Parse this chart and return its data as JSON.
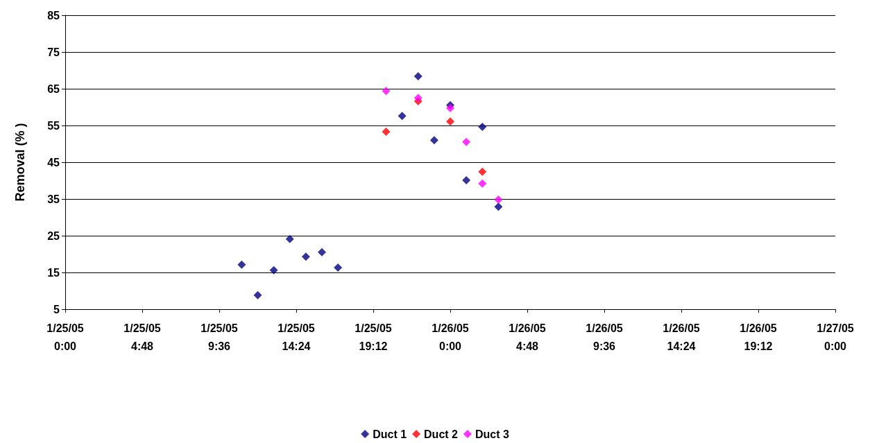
{
  "chart_data": {
    "type": "scatter",
    "ylabel": "Removal (% )",
    "marker": "diamond",
    "grid": "y",
    "legend": "bottom",
    "xlim": [
      "--01-25T00:00",
      "--01-27T00:00"
    ],
    "xticks": [
      {
        "value": "--01-25T00:00",
        "label": "1/25/05\n0:00"
      },
      {
        "value": "--01-25T04:48",
        "label": "1/25/05\n4:48"
      },
      {
        "value": "--01-25T09:36",
        "label": "1/25/05\n9:36"
      },
      {
        "value": "--01-25T14:24",
        "label": "1/25/05\n14:24"
      },
      {
        "value": "--01-25T19:12",
        "label": "1/25/05\n19:12"
      },
      {
        "value": "--01-26T00:00",
        "label": "1/26/05\n0:00"
      },
      {
        "value": "--01-26T04:48",
        "label": "1/26/05\n4:48"
      },
      {
        "value": "--01-26T09:36",
        "label": "1/26/05\n9:36"
      },
      {
        "value": "--01-26T14:24",
        "label": "1/26/05\n14:24"
      },
      {
        "value": "--01-26T19:12",
        "label": "1/26/05\n19:12"
      },
      {
        "value": "--01-27T00:00",
        "label": "1/27/05\n0:00"
      }
    ],
    "ylim": [
      5,
      85
    ],
    "yticks": [
      5,
      15,
      25,
      35,
      45,
      55,
      65,
      75,
      85
    ],
    "series": [
      {
        "name": "Duct 1",
        "color": "#000080",
        "x": [
          "--01-25T11:00",
          "--01-25T12:00",
          "--01-25T13:00",
          "--01-25T14:00",
          "--01-25T15:00",
          "--01-25T16:00",
          "--01-25T17:00",
          "--01-25T21:00",
          "--01-25T22:00",
          "--01-25T23:00",
          "--01-26T00:00",
          "--01-26T01:00",
          "--01-26T02:00",
          "--01-26T03:00"
        ],
        "values": [
          17.1,
          8.8,
          15.6,
          24.1,
          19.3,
          20.5,
          16.3,
          57.6,
          68.4,
          51.0,
          60.5,
          40.1,
          54.6,
          32.9
        ]
      },
      {
        "name": "Duct 2",
        "color": "#ff0000",
        "x": [
          "--01-25T20:00",
          "--01-25T22:00",
          "--01-26T00:00",
          "--01-26T02:00"
        ],
        "values": [
          53.3,
          61.6,
          56.1,
          42.4
        ]
      },
      {
        "name": "Duct 3",
        "color": "#ff00ff",
        "x": [
          "--01-25T20:00",
          "--01-25T22:00",
          "--01-26T00:00",
          "--01-26T01:00",
          "--01-26T02:00",
          "--01-26T03:00"
        ],
        "values": [
          64.4,
          62.5,
          59.7,
          50.5,
          39.2,
          34.8
        ]
      }
    ]
  }
}
